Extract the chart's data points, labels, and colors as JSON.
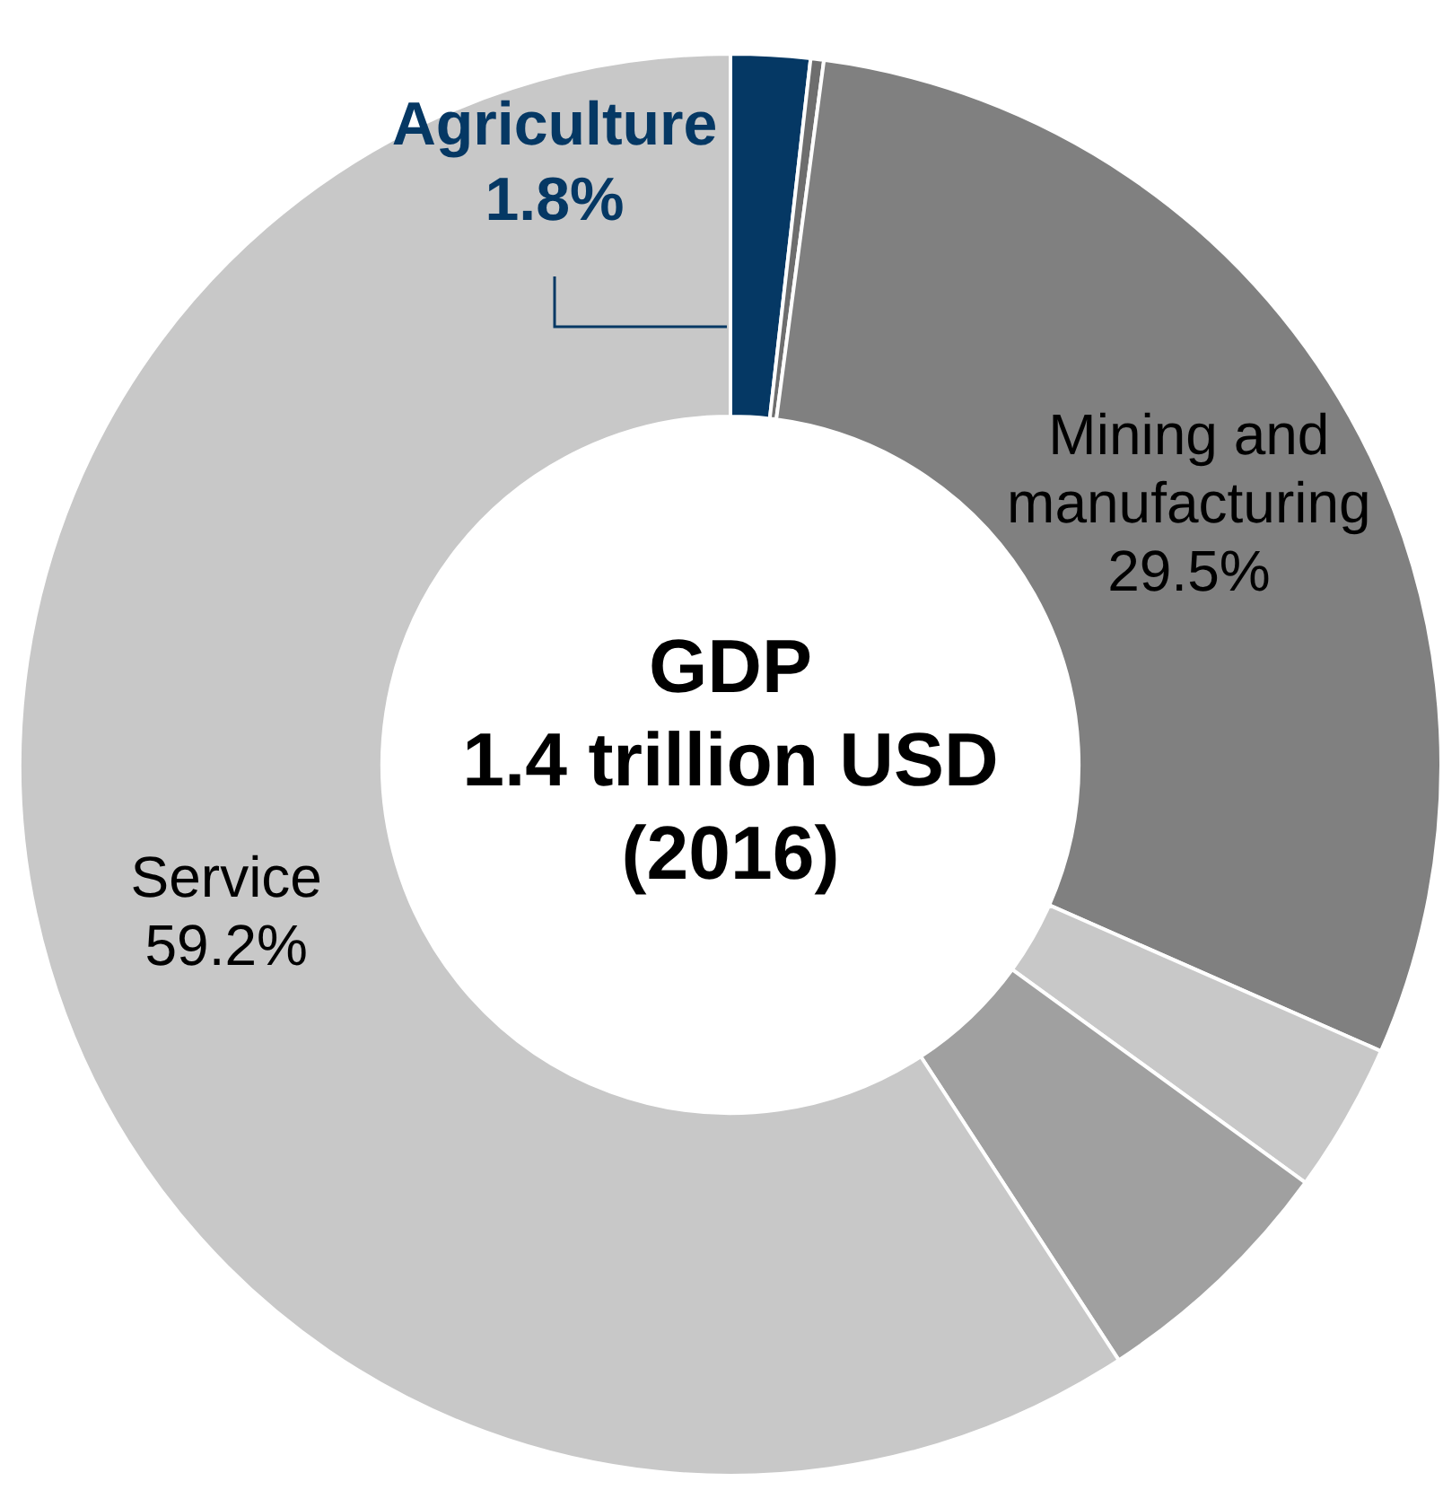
{
  "chart_data": {
    "type": "donut",
    "categories": [
      "Agriculture",
      null,
      "Mining and manufacturing",
      null,
      null,
      "Service"
    ],
    "values": [
      1.8,
      0.3,
      29.5,
      3.4,
      5.8,
      59.2
    ],
    "value_labels": [
      "1.8%",
      null,
      "29.5%",
      null,
      null,
      "59.2%"
    ],
    "colors": [
      "#053864",
      "#6e6e6e",
      "#808080",
      "#c8c8c8",
      "#a0a0a0",
      "#c8c8c8"
    ],
    "annotations": [
      "GDP",
      "1.4 trillion USD",
      "(2016)"
    ],
    "legend": false
  }
}
